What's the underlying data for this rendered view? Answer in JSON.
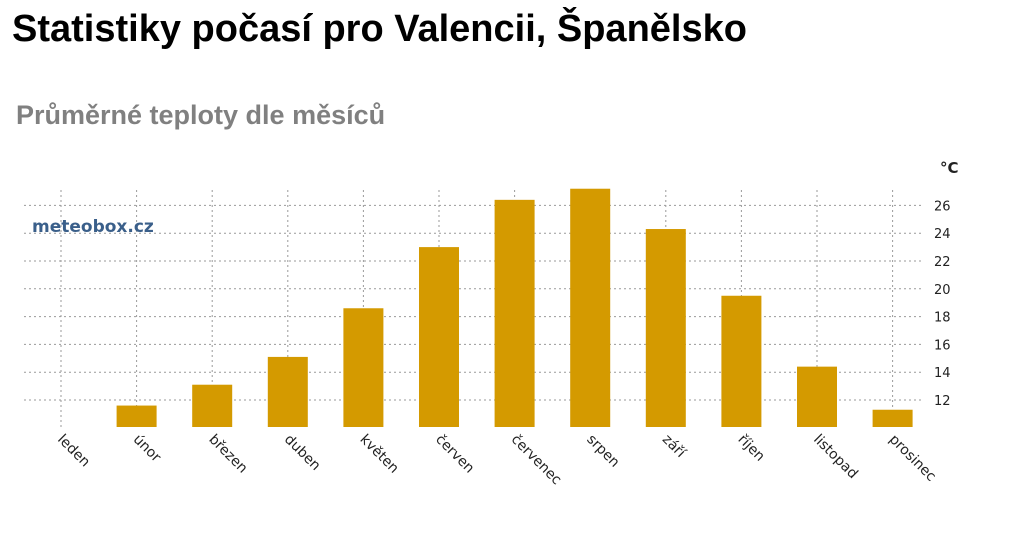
{
  "page": {
    "title": "Statistiky počasí pro Valencii, Španělsko",
    "subtitle": "Průměrné teploty dle měsíců"
  },
  "watermark": "meteobox.cz",
  "colors": {
    "bar": "#D49A00",
    "grid": "#9a9a9a",
    "subtitle": "#808080"
  },
  "chart_data": {
    "type": "bar",
    "title": "Průměrné teploty dle měsíců",
    "unit": "°C",
    "categories": [
      "leden",
      "únor",
      "březen",
      "duben",
      "květen",
      "červen",
      "červenec",
      "srpen",
      "září",
      "říjen",
      "listopad",
      "prosinec"
    ],
    "values": [
      10.0,
      11.6,
      13.1,
      15.1,
      18.6,
      23.0,
      26.4,
      27.2,
      24.3,
      19.5,
      14.4,
      11.3
    ],
    "y_ticks": [
      12,
      14,
      16,
      18,
      20,
      22,
      24,
      26
    ],
    "ylim": [
      10,
      27.5
    ],
    "y_axis_side": "right",
    "grid": true
  }
}
